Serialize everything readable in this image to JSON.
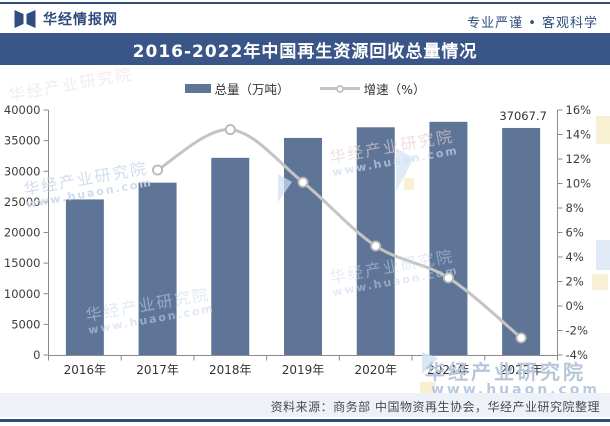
{
  "header": {
    "logo_text": "华经情报网",
    "slogan": "专业严谨 • 客观科学"
  },
  "title_banner": {
    "text": "2016-2022年中国再生资源回收总量情况"
  },
  "legend": {
    "items": [
      {
        "label": "总量（万吨）",
        "marker": "bar"
      },
      {
        "label": "增速（%）",
        "marker": "line-circle"
      }
    ]
  },
  "chart_data": {
    "type": "bar+line",
    "title": "2016-2022年中国再生资源回收总量情况",
    "categories": [
      "2016年",
      "2017年",
      "2018年",
      "2019年",
      "2020年",
      "2021年",
      "2022年"
    ],
    "series": [
      {
        "name": "总量（万吨）",
        "type": "bar",
        "axis": "left",
        "values": [
          25400,
          28140,
          32190,
          35440,
          37180,
          38070,
          37067.7
        ]
      },
      {
        "name": "增速（%）",
        "type": "line",
        "axis": "right",
        "values": [
          null,
          11.1,
          14.4,
          10.1,
          4.9,
          2.3,
          -2.6
        ]
      }
    ],
    "left_axis": {
      "min": 0,
      "max": 40000,
      "ticks": [
        "0",
        "5000",
        "10000",
        "15000",
        "20000",
        "25000",
        "30000",
        "35000",
        "40000"
      ]
    },
    "right_axis": {
      "min": -4,
      "max": 16,
      "ticks": [
        "-4%",
        "-2%",
        "0%",
        "2%",
        "4%",
        "6%",
        "8%",
        "10%",
        "12%",
        "14%",
        "16%"
      ]
    },
    "data_labels": [
      {
        "series": 0,
        "index": 6,
        "text": "37067.7"
      }
    ],
    "grid": "off",
    "legend_position": "top"
  },
  "watermarks": {
    "brand": "华经产业研究院",
    "site": "www.huaon.com"
  },
  "source_note": "资料来源：商务部 中国物资再生协会，华经产业研究院整理",
  "colors": {
    "bar": "#5e7597",
    "line": "#c4c4c4",
    "banner": "#3a5588",
    "navy": "#2e4d7d",
    "axis": "#8c8c8c",
    "text": "#3d3d3d"
  }
}
